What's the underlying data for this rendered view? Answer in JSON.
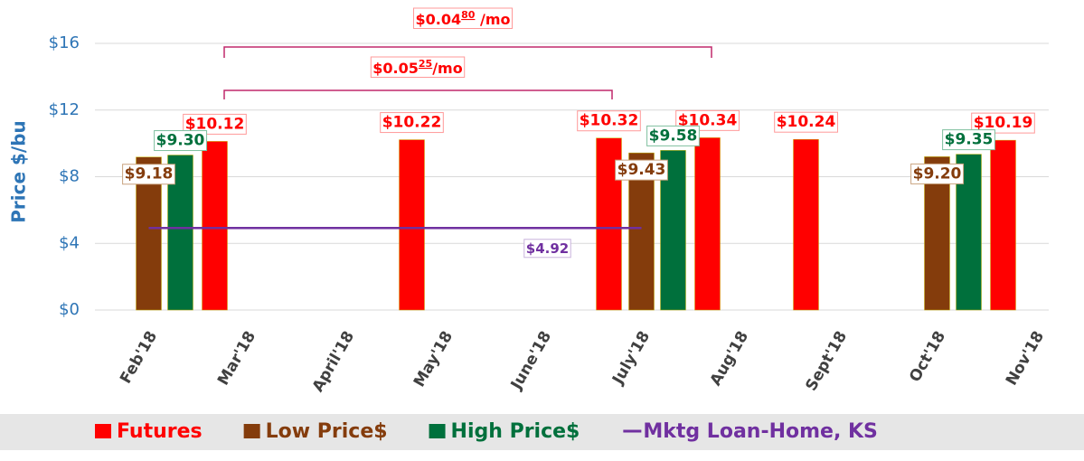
{
  "chart_data": {
    "type": "bar",
    "y_label": "Price $/bu",
    "categories": [
      "Feb'18",
      "Mar'18",
      "April'18",
      "May'18",
      "June'18",
      "July'18",
      "Aug'18",
      "Sept'18",
      "Oct'18",
      "Nov'18"
    ],
    "series": [
      {
        "name": "Futures",
        "color": "#ff0000",
        "values": [
          10.12,
          null,
          10.22,
          null,
          10.32,
          10.34,
          10.24,
          null,
          10.19,
          null
        ],
        "value_labels": [
          "$10.12",
          null,
          "$10.22",
          null,
          "$10.32",
          "$10.34",
          "$10.24",
          null,
          "$10.19",
          null
        ]
      },
      {
        "name": "Low Price$",
        "color": "#843c0c",
        "values": [
          9.18,
          null,
          null,
          null,
          null,
          9.43,
          null,
          null,
          9.2,
          null
        ],
        "value_labels": [
          "$9.18",
          null,
          null,
          null,
          null,
          "$9.43",
          null,
          null,
          "$9.20",
          null
        ]
      },
      {
        "name": "High Price$",
        "color": "#00703c",
        "values": [
          9.3,
          null,
          null,
          null,
          null,
          9.58,
          null,
          null,
          9.35,
          null
        ],
        "value_labels": [
          "$9.30",
          null,
          null,
          null,
          null,
          "$9.58",
          null,
          null,
          "$9.35",
          null
        ]
      },
      {
        "name": "Mktg Loan-Home, KS",
        "type": "line",
        "color": "#7030a0",
        "values": [
          4.92,
          4.92,
          4.92,
          4.92,
          4.92,
          4.92,
          null,
          null,
          null,
          null
        ],
        "value_labels": [
          null,
          null,
          null,
          null,
          "$4.92",
          null,
          null,
          null,
          null,
          null
        ]
      }
    ],
    "ylim": [
      0,
      16
    ],
    "yticks": [
      {
        "value": 0,
        "label": "$0"
      },
      {
        "value": 4,
        "label": "$4"
      },
      {
        "value": 8,
        "label": "$8"
      },
      {
        "value": 12,
        "label": "$12"
      },
      {
        "value": 16,
        "label": "$16"
      }
    ],
    "grid": true,
    "annotations": [
      {
        "text": "$0.04",
        "sup": "80",
        "suffix": " /mo"
      },
      {
        "text": "$0.05",
        "sup": "25",
        "suffix": "/mo"
      }
    ]
  }
}
